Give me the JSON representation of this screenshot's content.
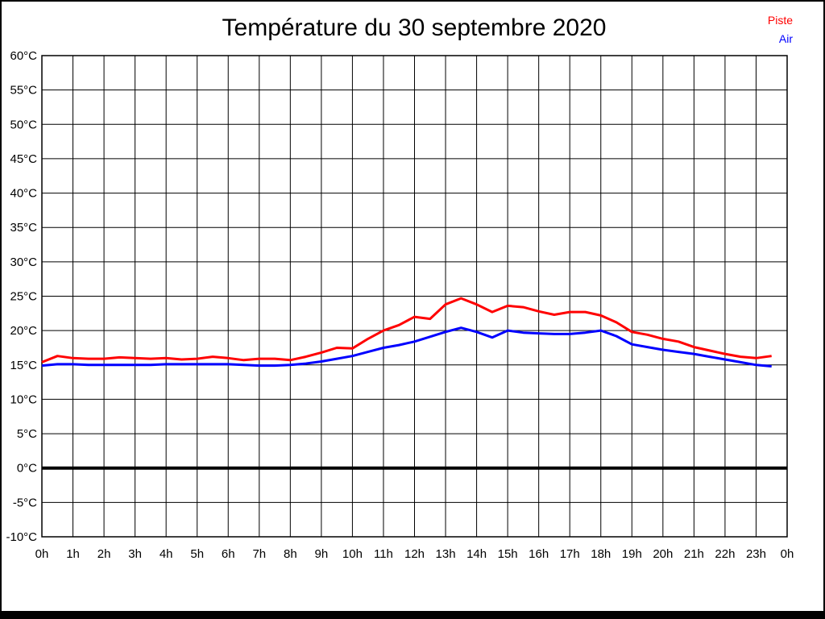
{
  "title": {
    "text": "Température du 30 septembre 2020"
  },
  "legend": {
    "items": [
      {
        "label": "Piste",
        "color": "#ff0000"
      },
      {
        "label": "Air",
        "color": "#0000ff"
      }
    ]
  },
  "colors": {
    "background": "#ffffff",
    "frame": "#000000",
    "grid": "#000000",
    "text": "#000000"
  },
  "chart_data": {
    "type": "line",
    "title": "Température du 30 septembre 2020",
    "xlabel": "",
    "ylabel": "",
    "x_unit": "h",
    "y_unit": "°C",
    "xlim": [
      0,
      24
    ],
    "ylim": [
      -10,
      60
    ],
    "grid": true,
    "legend_position": "top-right",
    "zero_line": {
      "value": 0,
      "color": "#000000",
      "width": 4
    },
    "y_tick_values": [
      -10,
      -5,
      0,
      5,
      10,
      15,
      20,
      25,
      30,
      35,
      40,
      45,
      50,
      55,
      60
    ],
    "y_tick_labels": [
      "-10°C",
      "-5°C",
      "0°C",
      "5°C",
      "10°C",
      "15°C",
      "20°C",
      "25°C",
      "30°C",
      "35°C",
      "40°C",
      "45°C",
      "50°C",
      "55°C",
      "60°C"
    ],
    "x_tick_values": [
      0,
      1,
      2,
      3,
      4,
      5,
      6,
      7,
      8,
      9,
      10,
      11,
      12,
      13,
      14,
      15,
      16,
      17,
      18,
      19,
      20,
      21,
      22,
      23,
      24
    ],
    "x_tick_labels": [
      "0h",
      "1h",
      "2h",
      "3h",
      "4h",
      "5h",
      "6h",
      "7h",
      "8h",
      "9h",
      "10h",
      "11h",
      "12h",
      "13h",
      "14h",
      "15h",
      "16h",
      "17h",
      "18h",
      "19h",
      "20h",
      "21h",
      "22h",
      "23h",
      "0h"
    ],
    "x": [
      0,
      0.5,
      1,
      1.5,
      2,
      2.5,
      3,
      3.5,
      4,
      4.5,
      5,
      5.5,
      6,
      6.5,
      7,
      7.5,
      8,
      8.5,
      9,
      9.5,
      10,
      10.5,
      11,
      11.5,
      12,
      12.5,
      13,
      13.5,
      14,
      14.5,
      15,
      15.5,
      16,
      16.5,
      17,
      17.5,
      18,
      18.5,
      19,
      19.5,
      20,
      20.5,
      21,
      21.5,
      22,
      22.5,
      23,
      23.5
    ],
    "series": [
      {
        "name": "Piste",
        "color": "#ff0000",
        "width": 3,
        "values": [
          15.4,
          16.3,
          16.0,
          15.9,
          15.9,
          16.1,
          16.0,
          15.9,
          16.0,
          15.8,
          15.9,
          16.2,
          16.0,
          15.7,
          15.9,
          15.9,
          15.7,
          16.2,
          16.8,
          17.5,
          17.4,
          18.8,
          20.0,
          20.8,
          22.0,
          21.7,
          23.8,
          24.7,
          23.8,
          22.7,
          23.6,
          23.4,
          22.8,
          22.3,
          22.7,
          22.7,
          22.2,
          21.2,
          19.8,
          19.4,
          18.8,
          18.4,
          17.6,
          17.1,
          16.6,
          16.2,
          16.0,
          16.3
        ]
      },
      {
        "name": "Air",
        "color": "#0000ff",
        "width": 3,
        "values": [
          14.9,
          15.1,
          15.1,
          15.0,
          15.0,
          15.0,
          15.0,
          15.0,
          15.1,
          15.1,
          15.1,
          15.1,
          15.1,
          15.0,
          14.9,
          14.9,
          15.0,
          15.2,
          15.5,
          15.9,
          16.3,
          16.9,
          17.5,
          17.9,
          18.4,
          19.1,
          19.8,
          20.4,
          19.8,
          19.0,
          20.0,
          19.7,
          19.6,
          19.5,
          19.5,
          19.7,
          20.0,
          19.2,
          18.0,
          17.6,
          17.2,
          16.9,
          16.6,
          16.2,
          15.8,
          15.4,
          15.0,
          14.8
        ]
      }
    ]
  }
}
